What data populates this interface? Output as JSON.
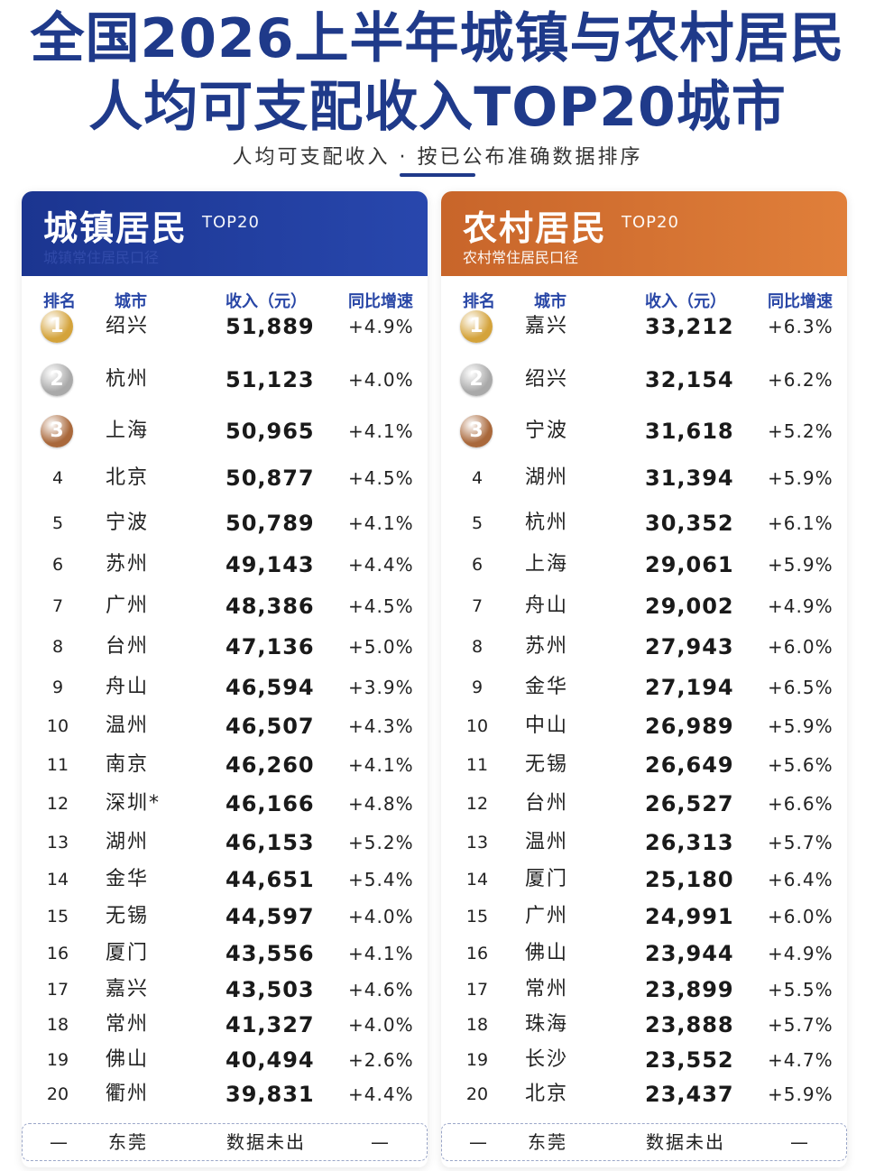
{
  "title_line1": "全国2026上半年城镇与农村居民",
  "title_line2": "人均可支配收入TOP20城市",
  "subtitle": "人均可支配收入 · 按已公布准确数据排序",
  "colors": {
    "urban": "#1f3a8a",
    "rural": "#d9742f",
    "gold": "#d4a33b",
    "silver": "#a9a9a9",
    "bronze": "#a9683b"
  },
  "headers": {
    "rank": "排名",
    "city": "城市",
    "income": "收入（元）",
    "growth": "同比增速"
  },
  "urban": {
    "title": "城镇居民",
    "tag": "TOP20",
    "note": "城镇常住居民口径",
    "rows": [
      {
        "rank": "1",
        "city": "绍兴",
        "income": "51,889",
        "growth": "+4.9%"
      },
      {
        "rank": "2",
        "city": "杭州",
        "income": "51,123",
        "growth": "+4.0%"
      },
      {
        "rank": "3",
        "city": "上海",
        "income": "50,965",
        "growth": "+4.1%"
      },
      {
        "rank": "4",
        "city": "北京",
        "income": "50,877",
        "growth": "+4.5%"
      },
      {
        "rank": "5",
        "city": "宁波",
        "income": "50,789",
        "growth": "+4.1%"
      },
      {
        "rank": "6",
        "city": "苏州",
        "income": "49,143",
        "growth": "+4.4%"
      },
      {
        "rank": "7",
        "city": "广州",
        "income": "48,386",
        "growth": "+4.5%"
      },
      {
        "rank": "8",
        "city": "台州",
        "income": "47,136",
        "growth": "+5.0%"
      },
      {
        "rank": "9",
        "city": "舟山",
        "income": "46,594",
        "growth": "+3.9%"
      },
      {
        "rank": "10",
        "city": "温州",
        "income": "46,507",
        "growth": "+4.3%"
      },
      {
        "rank": "11",
        "city": "南京",
        "income": "46,260",
        "growth": "+4.1%"
      },
      {
        "rank": "12",
        "city": "深圳*",
        "income": "46,166",
        "growth": "+4.8%"
      },
      {
        "rank": "13",
        "city": "湖州",
        "income": "46,153",
        "growth": "+5.2%"
      },
      {
        "rank": "14",
        "city": "金华",
        "income": "44,651",
        "growth": "+5.4%"
      },
      {
        "rank": "15",
        "city": "无锡",
        "income": "44,597",
        "growth": "+4.0%"
      },
      {
        "rank": "16",
        "city": "厦门",
        "income": "43,556",
        "growth": "+4.1%"
      },
      {
        "rank": "17",
        "city": "嘉兴",
        "income": "43,503",
        "growth": "+4.6%"
      },
      {
        "rank": "18",
        "city": "常州",
        "income": "41,327",
        "growth": "+4.0%"
      },
      {
        "rank": "19",
        "city": "佛山",
        "income": "40,494",
        "growth": "+2.6%"
      },
      {
        "rank": "20",
        "city": "衢州",
        "income": "39,831",
        "growth": "+4.4%"
      }
    ],
    "footer": {
      "rank": "—",
      "city": "东莞",
      "income": "数据未出",
      "growth": "—"
    }
  },
  "rural": {
    "title": "农村居民",
    "tag": "TOP20",
    "note": "农村常住居民口径",
    "rows": [
      {
        "rank": "1",
        "city": "嘉兴",
        "income": "33,212",
        "growth": "+6.3%"
      },
      {
        "rank": "2",
        "city": "绍兴",
        "income": "32,154",
        "growth": "+6.2%"
      },
      {
        "rank": "3",
        "city": "宁波",
        "income": "31,618",
        "growth": "+5.2%"
      },
      {
        "rank": "4",
        "city": "湖州",
        "income": "31,394",
        "growth": "+5.9%"
      },
      {
        "rank": "5",
        "city": "杭州",
        "income": "30,352",
        "growth": "+6.1%"
      },
      {
        "rank": "6",
        "city": "上海",
        "income": "29,061",
        "growth": "+5.9%"
      },
      {
        "rank": "7",
        "city": "舟山",
        "income": "29,002",
        "growth": "+4.9%"
      },
      {
        "rank": "8",
        "city": "苏州",
        "income": "27,943",
        "growth": "+6.0%"
      },
      {
        "rank": "9",
        "city": "金华",
        "income": "27,194",
        "growth": "+6.5%"
      },
      {
        "rank": "10",
        "city": "中山",
        "income": "26,989",
        "growth": "+5.9%"
      },
      {
        "rank": "11",
        "city": "无锡",
        "income": "26,649",
        "growth": "+5.6%"
      },
      {
        "rank": "12",
        "city": "台州",
        "income": "26,527",
        "growth": "+6.6%"
      },
      {
        "rank": "13",
        "city": "温州",
        "income": "26,313",
        "growth": "+5.7%"
      },
      {
        "rank": "14",
        "city": "厦门",
        "income": "25,180",
        "growth": "+6.4%"
      },
      {
        "rank": "15",
        "city": "广州",
        "income": "24,991",
        "growth": "+6.0%"
      },
      {
        "rank": "16",
        "city": "佛山",
        "income": "23,944",
        "growth": "+4.9%"
      },
      {
        "rank": "17",
        "city": "常州",
        "income": "23,899",
        "growth": "+5.5%"
      },
      {
        "rank": "18",
        "city": "珠海",
        "income": "23,888",
        "growth": "+5.7%"
      },
      {
        "rank": "19",
        "city": "长沙",
        "income": "23,552",
        "growth": "+4.7%"
      },
      {
        "rank": "20",
        "city": "北京",
        "income": "23,437",
        "growth": "+5.9%"
      }
    ],
    "footer": {
      "rank": "—",
      "city": "东莞",
      "income": "数据未出",
      "growth": "—"
    }
  }
}
